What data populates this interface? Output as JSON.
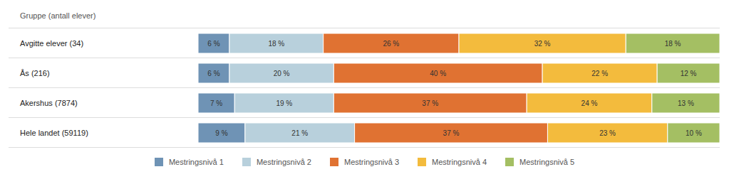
{
  "chart_data": {
    "type": "bar",
    "orientation": "horizontal",
    "stacked": true,
    "data_labels": true,
    "tick_labels": "y",
    "legend": "bottom",
    "ylabel": "Gruppe (antall elever)",
    "categories": [
      "Avgitte elever (34)",
      "Ås (216)",
      "Akershus (7874)",
      "Hele landet (59119)"
    ],
    "xlim": [
      0,
      100
    ],
    "series": [
      {
        "name": "Mestringsnivå 1",
        "color": "#6f93b5",
        "values": [
          6,
          6,
          7,
          9
        ],
        "value_labels": [
          "6 %",
          "6 %",
          "7 %",
          "9 %"
        ]
      },
      {
        "name": "Mestringsnivå 2",
        "color": "#b8d0dc",
        "values": [
          18,
          20,
          19,
          21
        ],
        "value_labels": [
          "18 %",
          "20 %",
          "19 %",
          "21 %"
        ]
      },
      {
        "name": "Mestringsnivå 3",
        "color": "#e07232",
        "values": [
          26,
          40,
          37,
          37
        ],
        "value_labels": [
          "26 %",
          "40 %",
          "37 %",
          "37 %"
        ]
      },
      {
        "name": "Mestringsnivå 4",
        "color": "#f3bb3d",
        "values": [
          32,
          22,
          24,
          23
        ],
        "value_labels": [
          "32 %",
          "22 %",
          "24 %",
          "23 %"
        ]
      },
      {
        "name": "Mestringsnivå 5",
        "color": "#a4bf63",
        "values": [
          18,
          12,
          13,
          10
        ],
        "value_labels": [
          "18 %",
          "12 %",
          "13 %",
          "10 %"
        ]
      }
    ]
  }
}
